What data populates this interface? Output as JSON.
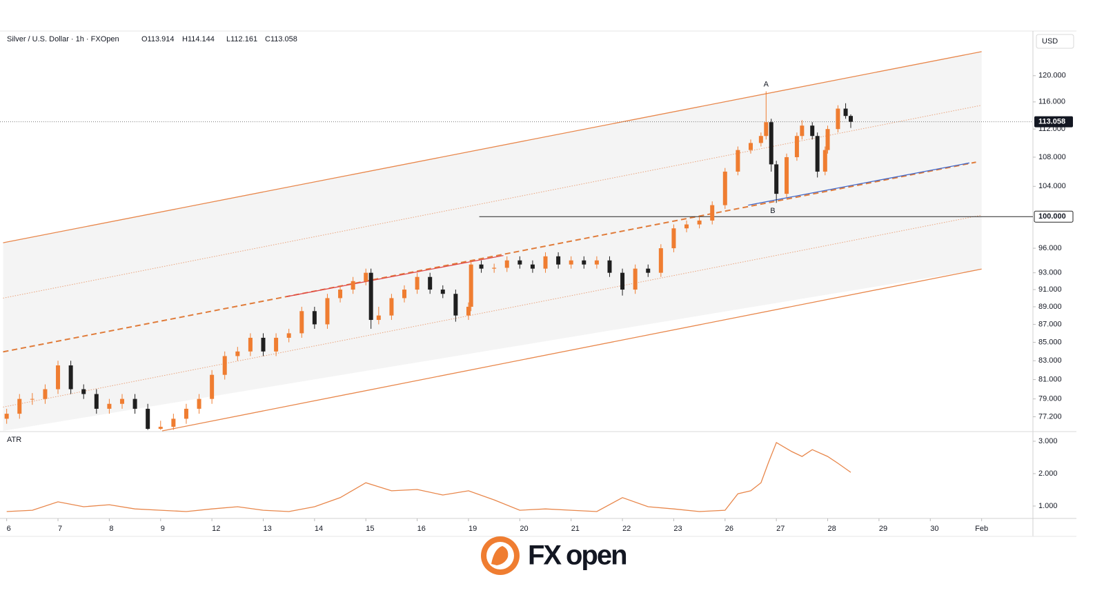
{
  "chart_data": {
    "type": "candlestick",
    "title": "Silver / U.S. Dollar · 1h · FXOpen",
    "ohlc_labels": [
      "O113.914",
      "H114.144",
      "L112.161",
      "C113.058"
    ],
    "currency": "USD",
    "up_color": "#ef7d31",
    "down_color": "#1f1f1f",
    "log_scale": true,
    "x": [
      0,
      0.25,
      0.5,
      0.75,
      1,
      1.25,
      1.5,
      1.75,
      2,
      2.25,
      2.5,
      2.75,
      3,
      3.25,
      3.5,
      3.75,
      4,
      4.25,
      4.5,
      4.75,
      5,
      5.25,
      5.5,
      5.75,
      6,
      6.25,
      6.5,
      6.75,
      7,
      7.1,
      7.25,
      7.5,
      7.75,
      8,
      8.25,
      8.5,
      8.75,
      9,
      9.05,
      9.25,
      9.5,
      9.75,
      10,
      10.25,
      10.5,
      10.75,
      11,
      11.25,
      11.5,
      11.75,
      12,
      12.25,
      12.5,
      12.75,
      13,
      13.25,
      13.5,
      13.75,
      14,
      14.25,
      14.5,
      14.7,
      14.8,
      14.9,
      15,
      15.2,
      15.4,
      15.5,
      15.7,
      15.8,
      15.95,
      16,
      16.2,
      16.35,
      16.45
    ],
    "open": [
      77,
      77.5,
      79,
      79,
      80,
      82.5,
      80,
      79.5,
      78,
      78.5,
      79,
      78,
      76,
      76.2,
      77,
      78,
      79,
      81.5,
      83.5,
      84,
      85.5,
      84,
      85.5,
      86,
      88.5,
      87,
      90,
      91,
      92,
      93,
      87.5,
      88,
      90,
      91,
      92.5,
      91,
      90.5,
      88,
      89,
      94,
      93.5,
      93.6,
      94.5,
      94,
      93.5,
      95,
      94,
      94.5,
      94,
      94.5,
      93,
      91,
      93.5,
      93,
      96,
      98.5,
      99,
      99.5,
      101.5,
      106,
      109,
      110,
      111,
      113,
      107,
      103,
      108,
      111,
      112.5,
      111,
      106,
      109,
      112,
      115,
      113.914
    ],
    "high": [
      78,
      79.5,
      79.6,
      80.5,
      83,
      83,
      80.5,
      80,
      79,
      79.5,
      79.5,
      78.5,
      76.8,
      77.5,
      78.5,
      79.5,
      82,
      84,
      84.5,
      86,
      86,
      86,
      86.5,
      89,
      89,
      90.5,
      91.5,
      92.5,
      93.5,
      93.5,
      89,
      90.5,
      91.5,
      93,
      93,
      91.5,
      91,
      89.5,
      94.5,
      94.5,
      94.1,
      95,
      95,
      94.5,
      95.5,
      95.5,
      95,
      95,
      95,
      95,
      93.5,
      94,
      94,
      96.5,
      99,
      99.5,
      100,
      102,
      106.5,
      109.5,
      110.5,
      111.5,
      117.6,
      113.5,
      107.5,
      108.5,
      111.5,
      113.3,
      113,
      111.5,
      109.5,
      112.5,
      115.5,
      115.8,
      114.144
    ],
    "low": [
      76.5,
      77,
      78.4,
      78.5,
      79.5,
      79.5,
      79,
      77.5,
      77.5,
      78,
      77.5,
      75.9,
      75.9,
      75.9,
      76.5,
      77.5,
      78.5,
      81,
      83,
      83.5,
      83.5,
      83.5,
      85,
      85.5,
      86.5,
      86.5,
      89.5,
      90.5,
      91.5,
      86.5,
      87,
      87.5,
      89.5,
      90.5,
      90.5,
      90,
      87.3,
      87.5,
      88.5,
      93,
      93,
      93.1,
      93.5,
      93,
      93,
      93.5,
      93.5,
      93.5,
      93.5,
      92.5,
      90.3,
      90.5,
      92.5,
      92.5,
      95.5,
      98,
      98.5,
      99,
      101,
      105.5,
      108.5,
      109.5,
      110.5,
      106,
      101.8,
      102.5,
      107.5,
      110.5,
      110.5,
      105.2,
      105.5,
      108.5,
      111.5,
      113.5,
      112.161
    ],
    "close": [
      77.5,
      79,
      79,
      80,
      82.5,
      80,
      79.5,
      78,
      78.5,
      79,
      78,
      76,
      76.2,
      77,
      78,
      79,
      81.5,
      83.5,
      84,
      85.5,
      84,
      85.5,
      86,
      88.5,
      87,
      90,
      91,
      92,
      93,
      87.5,
      88,
      90,
      91,
      92.5,
      91,
      90.5,
      88,
      89,
      94,
      93.5,
      93.6,
      94.5,
      94,
      93.5,
      95,
      94,
      94.5,
      94,
      94.5,
      93,
      91,
      93.5,
      93,
      96,
      98.5,
      99,
      99.5,
      101.5,
      106,
      109,
      110,
      111,
      113,
      107,
      103,
      108,
      111,
      112.5,
      111,
      106,
      109,
      112,
      115,
      113.914,
      113.058
    ],
    "xlim": [
      -0.13,
      20
    ],
    "xticks": [
      {
        "value": 0,
        "label": "6"
      },
      {
        "value": 1,
        "label": "7"
      },
      {
        "value": 2,
        "label": "8"
      },
      {
        "value": 3,
        "label": "9"
      },
      {
        "value": 4,
        "label": "12"
      },
      {
        "value": 5,
        "label": "13"
      },
      {
        "value": 6,
        "label": "14"
      },
      {
        "value": 7,
        "label": "15"
      },
      {
        "value": 8,
        "label": "16"
      },
      {
        "value": 9,
        "label": "19"
      },
      {
        "value": 10,
        "label": "20"
      },
      {
        "value": 11,
        "label": "21"
      },
      {
        "value": 12,
        "label": "22"
      },
      {
        "value": 13,
        "label": "23"
      },
      {
        "value": 14,
        "label": "26"
      },
      {
        "value": 15,
        "label": "27"
      },
      {
        "value": 16,
        "label": "28"
      },
      {
        "value": 17,
        "label": "29"
      },
      {
        "value": 18,
        "label": "30"
      },
      {
        "value": 19,
        "label": "Feb"
      }
    ],
    "ylim": [
      75.8,
      126.8
    ],
    "yticks": [
      {
        "value": 120,
        "label": "120.000"
      },
      {
        "value": 116,
        "label": "116.000"
      },
      {
        "value": 112,
        "label": "112.000"
      },
      {
        "value": 108,
        "label": "108.000"
      },
      {
        "value": 104,
        "label": "104.000"
      },
      {
        "value": 96,
        "label": "96.000"
      },
      {
        "value": 93,
        "label": "93.000"
      },
      {
        "value": 91,
        "label": "91.000"
      },
      {
        "value": 89,
        "label": "89.000"
      },
      {
        "value": 87,
        "label": "87.000"
      },
      {
        "value": 85,
        "label": "85.000"
      },
      {
        "value": 83,
        "label": "83.000"
      },
      {
        "value": 81,
        "label": "81.000"
      },
      {
        "value": 79,
        "label": "79.000"
      },
      {
        "value": 77.2,
        "label": "77.200"
      }
    ],
    "last_price": {
      "value": 113.058,
      "label": "113.058"
    },
    "level": {
      "value": 100,
      "label": "100.000",
      "x_start": 9.21
    },
    "drawings": [
      {
        "x": [
          -0.07,
          19
        ],
        "y": [
          96.68,
          123.8
        ],
        "color": "#e8864a",
        "style": "solid"
      },
      {
        "x": [
          3.03,
          19
        ],
        "y": [
          75.8,
          93.45
        ],
        "color": "#e8864a",
        "style": "solid"
      },
      {
        "x": [
          -0.07,
          19
        ],
        "y": [
          90.0,
          115.5
        ],
        "color": "#eaa27a",
        "style": "dotted"
      },
      {
        "x": [
          -0.07,
          19
        ],
        "y": [
          78.17,
          100.2
        ],
        "color": "#eaa27a",
        "style": "dotted"
      },
      {
        "x": [
          -0.07,
          18.89
        ],
        "y": [
          83.96,
          107.3
        ],
        "color": "#e07b39",
        "style": "dashed"
      },
      {
        "x": [
          5.45,
          9.68
        ],
        "y": [
          90.17,
          95.1
        ],
        "color": "#e04848",
        "style": "solid"
      },
      {
        "x": [
          14.45,
          18.76
        ],
        "y": [
          101.5,
          107.2
        ],
        "color": "#3f66c9",
        "style": "solid"
      }
    ],
    "annotations": [
      {
        "text": "A",
        "x": 14.8,
        "y": 117.6
      },
      {
        "text": "B",
        "x": 14.93,
        "y": 101.8
      }
    ],
    "indicator": {
      "label": "ATR",
      "color": "#e8864a",
      "x": [
        0,
        0.5,
        1,
        1.5,
        2,
        2.5,
        3,
        3.5,
        4,
        4.5,
        5,
        5.5,
        6,
        6.5,
        7,
        7.5,
        8,
        8.5,
        9,
        9.5,
        10,
        10.5,
        11,
        11.5,
        12,
        12.5,
        13,
        13.5,
        14,
        14.25,
        14.5,
        14.7,
        14.85,
        15,
        15.3,
        15.5,
        15.7,
        16,
        16.2,
        16.45
      ],
      "values": [
        0.83,
        0.87,
        1.13,
        0.98,
        1.04,
        0.91,
        0.87,
        0.83,
        0.91,
        0.98,
        0.87,
        0.83,
        0.98,
        1.26,
        1.72,
        1.47,
        1.51,
        1.34,
        1.47,
        1.19,
        0.87,
        0.91,
        0.87,
        0.83,
        1.26,
        0.98,
        0.91,
        0.83,
        0.87,
        1.38,
        1.47,
        1.72,
        2.36,
        2.96,
        2.68,
        2.53,
        2.74,
        2.53,
        2.32,
        2.04
      ],
      "ylim": [
        0.66,
        3.255
      ],
      "yticks": [
        {
          "value": 3,
          "label": "3.000"
        },
        {
          "value": 2,
          "label": "2.000"
        },
        {
          "value": 1,
          "label": "1.000"
        }
      ]
    }
  },
  "branding": {
    "logo_parts": [
      "FX",
      "open"
    ]
  }
}
